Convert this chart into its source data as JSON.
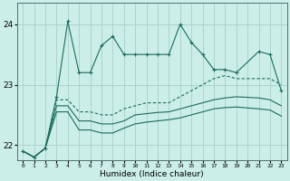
{
  "xlabel": "Humidex (Indice chaleur)",
  "bg_color": "#cceee8",
  "grid_color": "#aad4cc",
  "line_color": "#1a6b5a",
  "ylim": [
    21.75,
    24.35
  ],
  "xlim": [
    -0.5,
    23.5
  ],
  "yticks": [
    22,
    23,
    24
  ],
  "xticks": [
    0,
    1,
    2,
    3,
    4,
    5,
    6,
    7,
    8,
    9,
    10,
    11,
    12,
    13,
    14,
    15,
    16,
    17,
    18,
    19,
    20,
    21,
    22,
    23
  ],
  "line1_x": [
    0,
    1,
    2,
    3,
    4,
    5,
    6,
    7,
    8,
    9,
    10,
    11,
    12,
    13,
    14,
    15,
    16,
    17,
    18,
    19,
    21,
    22,
    23
  ],
  "line1_y": [
    21.9,
    21.8,
    21.95,
    22.8,
    24.05,
    23.2,
    23.2,
    23.65,
    23.8,
    23.5,
    23.5,
    23.5,
    23.5,
    23.5,
    24.0,
    23.7,
    23.5,
    23.25,
    23.25,
    23.2,
    23.55,
    23.5,
    22.9
  ],
  "line2_x": [
    0,
    1,
    2,
    3,
    4,
    5,
    6,
    7,
    8,
    9,
    10,
    11,
    12,
    13,
    14,
    15,
    16,
    17,
    18,
    19,
    21,
    22,
    23
  ],
  "line2_y": [
    21.9,
    21.8,
    21.95,
    22.75,
    22.75,
    22.55,
    22.55,
    22.5,
    22.5,
    22.6,
    22.65,
    22.7,
    22.7,
    22.7,
    22.8,
    22.9,
    23.0,
    23.1,
    23.15,
    23.1,
    23.1,
    23.1,
    23.0
  ],
  "line3_x": [
    0,
    1,
    2,
    3,
    4,
    5,
    6,
    7,
    8,
    9,
    10,
    11,
    12,
    13,
    14,
    15,
    16,
    17,
    18,
    19,
    21,
    22,
    23
  ],
  "line3_y": [
    21.9,
    21.8,
    21.95,
    22.65,
    22.65,
    22.4,
    22.4,
    22.35,
    22.35,
    22.4,
    22.5,
    22.52,
    22.54,
    22.55,
    22.6,
    22.65,
    22.7,
    22.75,
    22.78,
    22.8,
    22.78,
    22.75,
    22.65
  ],
  "line4_x": [
    0,
    1,
    2,
    3,
    4,
    5,
    6,
    7,
    8,
    9,
    10,
    11,
    12,
    13,
    14,
    15,
    16,
    17,
    18,
    19,
    21,
    22,
    23
  ],
  "line4_y": [
    21.9,
    21.8,
    21.95,
    22.55,
    22.55,
    22.25,
    22.25,
    22.2,
    22.2,
    22.28,
    22.35,
    22.38,
    22.4,
    22.42,
    22.45,
    22.5,
    22.55,
    22.6,
    22.62,
    22.63,
    22.6,
    22.58,
    22.48
  ]
}
